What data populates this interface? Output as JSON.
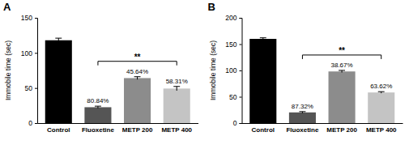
{
  "chart_data": [
    {
      "type": "bar",
      "title": "A",
      "ylabel": "Immobile time (sec)",
      "categories": [
        "Control",
        "Fluoxetine",
        "METP 200",
        "METP 400"
      ],
      "values": [
        118,
        22.6,
        64.1,
        49.2
      ],
      "errors": [
        3,
        1.5,
        2,
        3
      ],
      "colors": [
        "#000000",
        "#555555",
        "#8c8c8c",
        "#c4c4c4"
      ],
      "annotations": [
        null,
        "80.84%",
        "45.64%",
        "58.31%"
      ],
      "significance": "**",
      "ylim": [
        0,
        150
      ],
      "yticks": [
        0,
        50,
        100,
        150
      ]
    },
    {
      "type": "bar",
      "title": "B",
      "ylabel": "Immobile time (sec)",
      "categories": [
        "Control",
        "Fluoxetine",
        "METP 200",
        "METP 400"
      ],
      "values": [
        160,
        20.3,
        98.1,
        58.2
      ],
      "errors": [
        2,
        1.5,
        2,
        1.5
      ],
      "colors": [
        "#000000",
        "#555555",
        "#8c8c8c",
        "#c4c4c4"
      ],
      "annotations": [
        null,
        "87.32%",
        "38.67%",
        "63.62%"
      ],
      "significance": "**",
      "ylim": [
        0,
        200
      ],
      "yticks": [
        0,
        50,
        100,
        150,
        200
      ]
    }
  ]
}
